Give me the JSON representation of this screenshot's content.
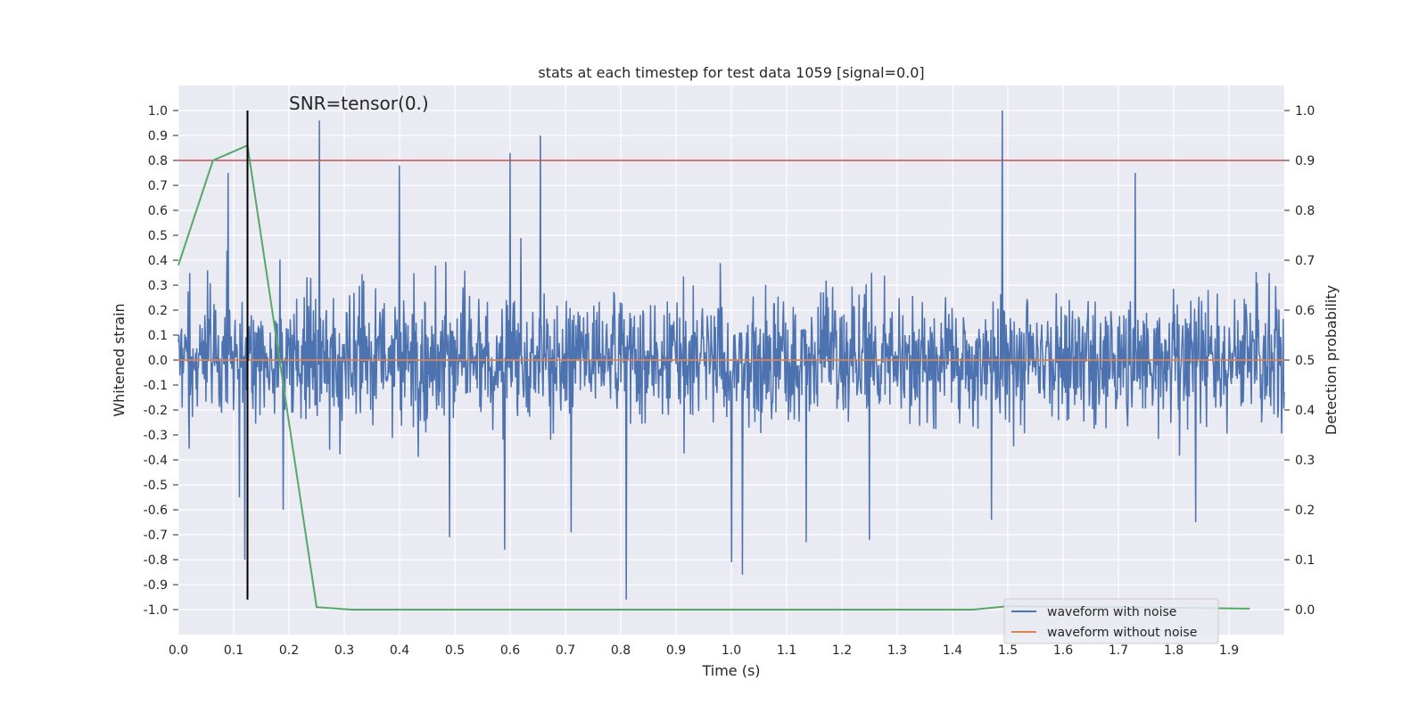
{
  "chart_data": {
    "type": "line",
    "title": "stats at each timestep for test data 1059 [signal=0.0]",
    "xlabel": "Time (s)",
    "ylabel": "Whitened strain",
    "y2label": "Detection probability",
    "xlim": [
      0.0,
      2.0
    ],
    "ylim": [
      -1.1,
      1.1
    ],
    "y2lim": [
      -0.05,
      1.05
    ],
    "xticks": [
      0.0,
      0.1,
      0.2,
      0.3,
      0.4,
      0.5,
      0.6,
      0.7,
      0.8,
      0.9,
      1.0,
      1.1,
      1.2,
      1.3,
      1.4,
      1.5,
      1.6,
      1.7,
      1.8,
      1.9
    ],
    "xtick_labels": [
      "0.0",
      "0.1",
      "0.2",
      "0.3",
      "0.4",
      "0.5",
      "0.6",
      "0.7",
      "0.8",
      "0.9",
      "1.0",
      "1.1",
      "1.2",
      "1.3",
      "1.4",
      "1.5",
      "1.6",
      "1.7",
      "1.8",
      "1.9"
    ],
    "yticks": [
      1.0,
      0.9,
      0.8,
      0.7,
      0.6,
      0.5,
      0.4,
      0.3,
      0.2,
      0.1,
      0.0,
      -0.1,
      -0.2,
      -0.3,
      -0.4,
      -0.5,
      -0.6,
      -0.7,
      -0.8,
      -0.9,
      -1.0
    ],
    "ytick_labels": [
      "1.0",
      "0.9",
      "0.8",
      "0.7",
      "0.6",
      "0.5",
      "0.4",
      "0.3",
      "0.2",
      "0.1",
      "0.0",
      "-0.1",
      "-0.2",
      "-0.3",
      "-0.4",
      "-0.5",
      "-0.6",
      "-0.7",
      "-0.8",
      "-0.9",
      "-1.0"
    ],
    "y2ticks": [
      1.0,
      0.9,
      0.8,
      0.7,
      0.6,
      0.5,
      0.4,
      0.3,
      0.2,
      0.1,
      0.0
    ],
    "y2tick_labels": [
      "1.0",
      "0.9",
      "0.8",
      "0.7",
      "0.6",
      "0.5",
      "0.4",
      "0.3",
      "0.2",
      "0.1",
      "0.0"
    ],
    "annotation": "SNR=tensor(0.)",
    "threshold_line": {
      "axis": "y2",
      "value": 0.9,
      "color": "#c44e52"
    },
    "vertical_marker": {
      "x": 0.125,
      "y_from": -0.96,
      "y_to": 1.0,
      "color": "#000000"
    },
    "series": [
      {
        "name": "waveform with noise",
        "axis": "y",
        "color": "#4c72b0",
        "kind": "dense-noise",
        "x_range": [
          0.0,
          2.0
        ],
        "samples": 2048,
        "std": 0.22,
        "min": -0.96,
        "max": 1.0,
        "spikes": [
          {
            "x": 0.09,
            "y": 0.75
          },
          {
            "x": 0.11,
            "y": -0.55
          },
          {
            "x": 0.12,
            "y": -0.8
          },
          {
            "x": 0.19,
            "y": -0.6
          },
          {
            "x": 0.255,
            "y": 0.96
          },
          {
            "x": 0.4,
            "y": 0.78
          },
          {
            "x": 0.49,
            "y": -0.71
          },
          {
            "x": 0.59,
            "y": -0.76
          },
          {
            "x": 0.6,
            "y": 0.83
          },
          {
            "x": 0.655,
            "y": 0.9
          },
          {
            "x": 0.71,
            "y": -0.69
          },
          {
            "x": 0.81,
            "y": -0.96
          },
          {
            "x": 1.0,
            "y": -0.81
          },
          {
            "x": 1.02,
            "y": -0.86
          },
          {
            "x": 1.135,
            "y": -0.73
          },
          {
            "x": 1.25,
            "y": -0.72
          },
          {
            "x": 1.49,
            "y": 1.0
          },
          {
            "x": 1.47,
            "y": -0.64
          },
          {
            "x": 1.73,
            "y": 0.75
          },
          {
            "x": 1.84,
            "y": -0.65
          }
        ]
      },
      {
        "name": "waveform without noise",
        "axis": "y",
        "color": "#dd8452",
        "x": [
          0.0,
          2.0
        ],
        "y": [
          0.0,
          0.0
        ]
      },
      {
        "name": "detection probability",
        "axis": "y2",
        "color": "#55a868",
        "x": [
          0.0,
          0.0625,
          0.125,
          0.25,
          0.3125,
          1.4375,
          1.5,
          1.9375
        ],
        "y": [
          0.69,
          0.9,
          0.93,
          0.005,
          0.0,
          0.0,
          0.007,
          0.002
        ]
      }
    ],
    "legend": {
      "position": "lower-right",
      "entries": [
        {
          "label": "waveform with noise",
          "color": "#4c72b0"
        },
        {
          "label": "waveform without noise",
          "color": "#dd8452"
        }
      ]
    },
    "grid": true,
    "background": "#eaeaf2"
  }
}
